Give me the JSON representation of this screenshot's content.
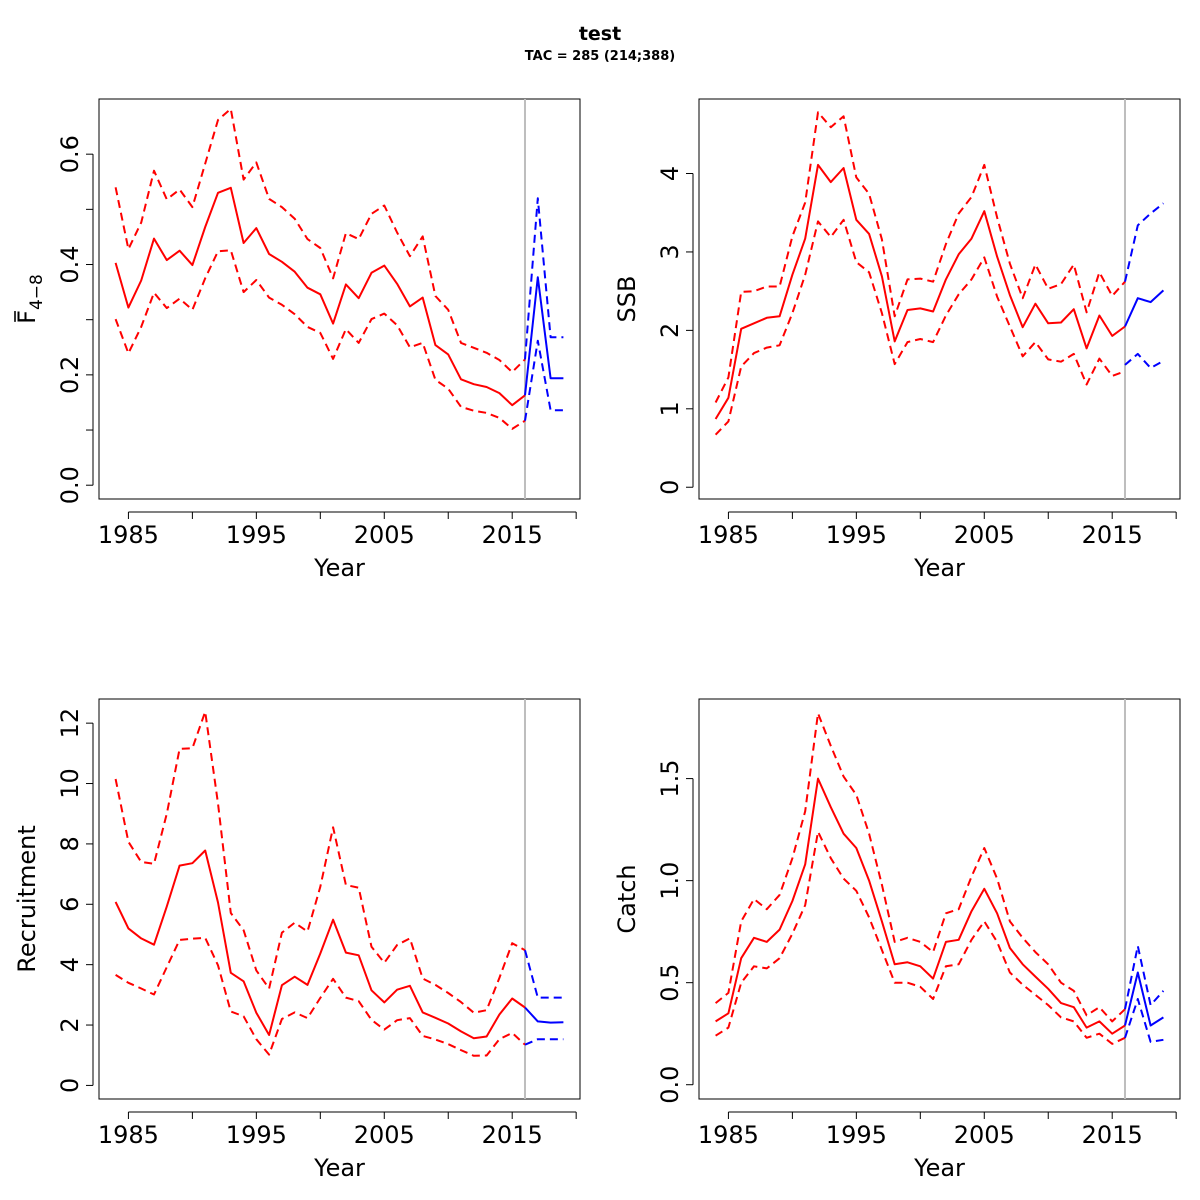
{
  "title": "test",
  "subtitle": "TAC = 285 (214;388)",
  "colors": {
    "historical": "#ff0000",
    "forecast": "#0000ff",
    "divider": "#bebebe"
  },
  "chart_data": [
    {
      "type": "line",
      "name": "F",
      "ylabel": "F4-8",
      "ylabel_main": "F",
      "ylabel_sub": "4−8",
      "xlabel": "Year",
      "xlim": [
        1982.7,
        2020.3
      ],
      "ylim": [
        -0.025,
        0.7
      ],
      "xticks": [
        1985,
        1990,
        1995,
        2000,
        2005,
        2010,
        2015,
        2020
      ],
      "xtick_labels": [
        "1985",
        "",
        "1995",
        "",
        "2005",
        "",
        "2015",
        ""
      ],
      "yticks": [
        0,
        0.1,
        0.2,
        0.3,
        0.4,
        0.5,
        0.6
      ],
      "ytick_labels": [
        "0.0",
        "",
        "0.2",
        "",
        "0.4",
        "",
        "0.6"
      ],
      "divider_x": 2016,
      "x": [
        1984,
        1985,
        1986,
        1987,
        1988,
        1989,
        1990,
        1991,
        1992,
        1993,
        1994,
        1995,
        1996,
        1997,
        1998,
        1999,
        2000,
        2001,
        2002,
        2003,
        2004,
        2005,
        2006,
        2007,
        2008,
        2009,
        2010,
        2011,
        2012,
        2013,
        2014,
        2015,
        2016
      ],
      "series": [
        {
          "kind": "estimate",
          "values": [
            0.403,
            0.322,
            0.371,
            0.447,
            0.408,
            0.425,
            0.399,
            0.468,
            0.53,
            0.539,
            0.439,
            0.466,
            0.419,
            0.405,
            0.387,
            0.358,
            0.346,
            0.293,
            0.364,
            0.339,
            0.385,
            0.398,
            0.365,
            0.324,
            0.34,
            0.254,
            0.237,
            0.192,
            0.183,
            0.178,
            0.167,
            0.145,
            0.163
          ]
        },
        {
          "kind": "upper",
          "values": [
            0.54,
            0.428,
            0.476,
            0.57,
            0.518,
            0.536,
            0.504,
            0.583,
            0.662,
            0.682,
            0.554,
            0.585,
            0.519,
            0.504,
            0.483,
            0.446,
            0.43,
            0.375,
            0.457,
            0.446,
            0.492,
            0.507,
            0.458,
            0.415,
            0.451,
            0.343,
            0.318,
            0.258,
            0.249,
            0.24,
            0.227,
            0.205,
            0.228
          ]
        },
        {
          "kind": "lower",
          "values": [
            0.301,
            0.239,
            0.287,
            0.349,
            0.321,
            0.338,
            0.318,
            0.375,
            0.424,
            0.426,
            0.35,
            0.372,
            0.34,
            0.327,
            0.31,
            0.287,
            0.276,
            0.229,
            0.283,
            0.258,
            0.301,
            0.311,
            0.29,
            0.25,
            0.258,
            0.191,
            0.175,
            0.142,
            0.135,
            0.131,
            0.122,
            0.102,
            0.117
          ]
        }
      ],
      "forecast": {
        "x": [
          2016,
          2017,
          2018,
          2019
        ],
        "estimate": [
          0.163,
          0.377,
          0.194,
          0.194
        ],
        "upper": [
          0.228,
          0.52,
          0.268,
          0.268
        ],
        "lower": [
          0.117,
          0.262,
          0.136,
          0.136
        ]
      }
    },
    {
      "type": "line",
      "name": "SSB",
      "ylabel": "SSB",
      "xlabel": "Year",
      "xlim": [
        1982.7,
        2020.3
      ],
      "ylim": [
        -0.15,
        4.95
      ],
      "xticks": [
        1985,
        1990,
        1995,
        2000,
        2005,
        2010,
        2015,
        2020
      ],
      "xtick_labels": [
        "1985",
        "",
        "1995",
        "",
        "2005",
        "",
        "2015",
        ""
      ],
      "yticks": [
        0,
        1,
        2,
        3,
        4
      ],
      "ytick_labels": [
        "0",
        "1",
        "2",
        "3",
        "4"
      ],
      "divider_x": 2016,
      "x": [
        1984,
        1985,
        1986,
        1987,
        1988,
        1989,
        1990,
        1991,
        1992,
        1993,
        1994,
        1995,
        1996,
        1997,
        1998,
        1999,
        2000,
        2001,
        2002,
        2003,
        2004,
        2005,
        2006,
        2007,
        2008,
        2009,
        2010,
        2011,
        2012,
        2013,
        2014,
        2015,
        2016
      ],
      "series": [
        {
          "kind": "estimate",
          "values": [
            0.87,
            1.14,
            2.02,
            2.09,
            2.16,
            2.18,
            2.71,
            3.17,
            4.11,
            3.89,
            4.07,
            3.41,
            3.23,
            2.69,
            1.86,
            2.26,
            2.28,
            2.24,
            2.65,
            2.97,
            3.17,
            3.52,
            2.94,
            2.45,
            2.04,
            2.34,
            2.09,
            2.1,
            2.27,
            1.77,
            2.19,
            1.93,
            2.05
          ]
        },
        {
          "kind": "upper",
          "values": [
            1.08,
            1.4,
            2.49,
            2.5,
            2.56,
            2.56,
            3.2,
            3.63,
            4.78,
            4.59,
            4.73,
            3.95,
            3.74,
            3.16,
            2.18,
            2.65,
            2.66,
            2.62,
            3.1,
            3.49,
            3.7,
            4.11,
            3.44,
            2.85,
            2.41,
            2.84,
            2.53,
            2.59,
            2.84,
            2.23,
            2.74,
            2.44,
            2.62
          ]
        },
        {
          "kind": "lower",
          "values": [
            0.67,
            0.84,
            1.54,
            1.71,
            1.78,
            1.81,
            2.22,
            2.71,
            3.39,
            3.19,
            3.41,
            2.87,
            2.74,
            2.22,
            1.57,
            1.85,
            1.89,
            1.85,
            2.19,
            2.46,
            2.65,
            2.93,
            2.43,
            2.05,
            1.67,
            1.85,
            1.63,
            1.6,
            1.7,
            1.31,
            1.64,
            1.42,
            1.48
          ]
        }
      ],
      "forecast": {
        "x": [
          2016,
          2017,
          2018,
          2019
        ],
        "estimate": [
          2.05,
          2.41,
          2.36,
          2.51
        ],
        "upper": [
          2.62,
          3.34,
          3.49,
          3.62
        ],
        "lower": [
          1.56,
          1.7,
          1.52,
          1.61
        ]
      }
    },
    {
      "type": "line",
      "name": "Recruitment",
      "ylabel": "Recruitment",
      "xlabel": "Year",
      "xlim": [
        1982.7,
        2020.3
      ],
      "ylim": [
        -0.45,
        12.8
      ],
      "xticks": [
        1985,
        1990,
        1995,
        2000,
        2005,
        2010,
        2015,
        2020
      ],
      "xtick_labels": [
        "1985",
        "",
        "1995",
        "",
        "2005",
        "",
        "2015",
        ""
      ],
      "yticks": [
        0,
        2,
        4,
        6,
        8,
        10,
        12
      ],
      "ytick_labels": [
        "0",
        "2",
        "4",
        "6",
        "8",
        "10",
        "12"
      ],
      "divider_x": 2016,
      "x": [
        1984,
        1985,
        1986,
        1987,
        1988,
        1989,
        1990,
        1991,
        1992,
        1993,
        1994,
        1995,
        1996,
        1997,
        1998,
        1999,
        2000,
        2001,
        2002,
        2003,
        2004,
        2005,
        2006,
        2007,
        2008,
        2009,
        2010,
        2011,
        2012,
        2013,
        2014,
        2015,
        2016
      ],
      "series": [
        {
          "kind": "estimate",
          "values": [
            6.08,
            5.2,
            4.87,
            4.66,
            5.93,
            7.28,
            7.36,
            7.78,
            6.06,
            3.73,
            3.45,
            2.41,
            1.67,
            3.32,
            3.6,
            3.33,
            4.37,
            5.49,
            4.4,
            4.31,
            3.15,
            2.75,
            3.17,
            3.3,
            2.42,
            2.24,
            2.05,
            1.79,
            1.56,
            1.62,
            2.35,
            2.88,
            2.58
          ]
        },
        {
          "kind": "upper",
          "values": [
            10.15,
            8.07,
            7.4,
            7.34,
            9.0,
            11.15,
            11.17,
            12.38,
            9.34,
            5.71,
            5.14,
            3.81,
            3.21,
            5.06,
            5.39,
            5.1,
            6.58,
            8.55,
            6.64,
            6.55,
            4.59,
            4.06,
            4.65,
            4.87,
            3.54,
            3.33,
            3.06,
            2.76,
            2.41,
            2.49,
            3.56,
            4.71,
            4.48
          ]
        },
        {
          "kind": "lower",
          "values": [
            3.66,
            3.4,
            3.21,
            3.01,
            3.92,
            4.82,
            4.86,
            4.89,
            3.98,
            2.45,
            2.29,
            1.53,
            1.02,
            2.2,
            2.42,
            2.23,
            2.9,
            3.53,
            2.91,
            2.79,
            2.17,
            1.85,
            2.16,
            2.23,
            1.64,
            1.52,
            1.37,
            1.17,
            0.98,
            0.99,
            1.53,
            1.74,
            1.35
          ]
        }
      ],
      "forecast": {
        "x": [
          2016,
          2017,
          2018,
          2019
        ],
        "estimate": [
          2.58,
          2.12,
          2.08,
          2.09
        ],
        "upper": [
          4.48,
          2.91,
          2.91,
          2.91
        ],
        "lower": [
          1.35,
          1.53,
          1.53,
          1.53
        ]
      }
    },
    {
      "type": "line",
      "name": "Catch",
      "ylabel": "Catch",
      "xlabel": "Year",
      "xlim": [
        1982.7,
        2020.3
      ],
      "ylim": [
        -0.07,
        1.89
      ],
      "xticks": [
        1985,
        1990,
        1995,
        2000,
        2005,
        2010,
        2015,
        2020
      ],
      "xtick_labels": [
        "1985",
        "",
        "1995",
        "",
        "2005",
        "",
        "2015",
        ""
      ],
      "yticks": [
        0,
        0.5,
        1.0,
        1.5
      ],
      "ytick_labels": [
        "0.0",
        "0.5",
        "1.0",
        "1.5"
      ],
      "divider_x": 2016,
      "x": [
        1984,
        1985,
        1986,
        1987,
        1988,
        1989,
        1990,
        1991,
        1992,
        1993,
        1994,
        1995,
        1996,
        1997,
        1998,
        1999,
        2000,
        2001,
        2002,
        2003,
        2004,
        2005,
        2006,
        2007,
        2008,
        2009,
        2010,
        2011,
        2012,
        2013,
        2014,
        2015,
        2016
      ],
      "series": [
        {
          "kind": "estimate",
          "values": [
            0.31,
            0.35,
            0.62,
            0.72,
            0.7,
            0.76,
            0.9,
            1.08,
            1.5,
            1.36,
            1.23,
            1.16,
            1.0,
            0.8,
            0.59,
            0.6,
            0.58,
            0.52,
            0.7,
            0.71,
            0.85,
            0.96,
            0.84,
            0.67,
            0.59,
            0.53,
            0.47,
            0.4,
            0.38,
            0.28,
            0.31,
            0.25,
            0.29
          ]
        },
        {
          "kind": "upper",
          "values": [
            0.4,
            0.45,
            0.8,
            0.91,
            0.86,
            0.93,
            1.11,
            1.34,
            1.82,
            1.66,
            1.51,
            1.42,
            1.23,
            0.98,
            0.7,
            0.72,
            0.7,
            0.65,
            0.84,
            0.86,
            1.02,
            1.16,
            1.01,
            0.8,
            0.72,
            0.65,
            0.59,
            0.5,
            0.46,
            0.34,
            0.38,
            0.31,
            0.37
          ]
        },
        {
          "kind": "lower",
          "values": [
            0.24,
            0.28,
            0.5,
            0.58,
            0.57,
            0.62,
            0.74,
            0.88,
            1.24,
            1.11,
            1.01,
            0.95,
            0.82,
            0.66,
            0.5,
            0.5,
            0.48,
            0.42,
            0.58,
            0.59,
            0.71,
            0.8,
            0.7,
            0.55,
            0.49,
            0.44,
            0.39,
            0.33,
            0.31,
            0.23,
            0.25,
            0.2,
            0.23
          ]
        }
      ],
      "forecast": {
        "x": [
          2016,
          2017,
          2018,
          2019
        ],
        "estimate": [
          0.29,
          0.55,
          0.29,
          0.33
        ],
        "upper": [
          0.37,
          0.68,
          0.39,
          0.46
        ],
        "lower": [
          0.23,
          0.42,
          0.21,
          0.22
        ]
      }
    }
  ]
}
